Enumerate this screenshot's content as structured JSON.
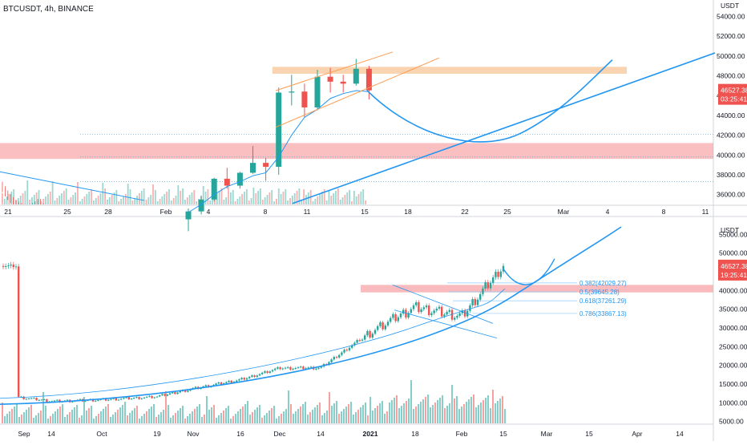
{
  "title": "BTCUSDT, 4h, BINANCE",
  "colors": {
    "up": "#26a69a",
    "down": "#ef5350",
    "trend": "#2196f3",
    "resistance_zone": "#f9c99c",
    "support_zone": "#f7a4a7",
    "channel": "#ff9a4d",
    "price_label": "#ef5350"
  },
  "chart_data": [
    {
      "type": "candlestick",
      "interval": "4h",
      "currency_label": "USDT",
      "price_axis": {
        "ticks": [
          "54000.00",
          "52000.00",
          "50000.00",
          "48000.00",
          "46000.00",
          "44000.00",
          "42000.00",
          "40000.00",
          "38000.00",
          "36000.00"
        ],
        "range": [
          35000,
          55000
        ]
      },
      "time_axis": {
        "ticks": [
          "21",
          "25",
          "28",
          "Feb",
          "4",
          "8",
          "11",
          "15",
          "18",
          "22",
          "25",
          "Mar",
          "4",
          "8",
          "11"
        ]
      },
      "last_price": "46527.38",
      "countdown": "03:25:41",
      "zones": [
        {
          "kind": "resistance",
          "from": 48200,
          "to": 48900
        },
        {
          "kind": "support",
          "from": 39600,
          "to": 41200
        }
      ],
      "horizontal_levels": [
        42100,
        39800,
        37300
      ],
      "projection": "parabolic curve from ~46500 dipping to ~41000 near Feb 23 then rising past 49500 by early Mar",
      "candles": [
        {
          "t": "Feb 1",
          "o": 33500,
          "h": 34600,
          "l": 32300,
          "c": 34300
        },
        {
          "t": "Feb 2",
          "o": 34300,
          "h": 35900,
          "l": 34000,
          "c": 35500
        },
        {
          "t": "Feb 3",
          "o": 35500,
          "h": 37700,
          "l": 35300,
          "c": 37600
        },
        {
          "t": "Feb 4",
          "o": 37600,
          "h": 38700,
          "l": 36600,
          "c": 36900
        },
        {
          "t": "Feb 5",
          "o": 36900,
          "h": 38300,
          "l": 36600,
          "c": 38200
        },
        {
          "t": "Feb 6",
          "o": 38200,
          "h": 40900,
          "l": 38100,
          "c": 39200
        },
        {
          "t": "Feb 7",
          "o": 39200,
          "h": 39700,
          "l": 37400,
          "c": 38800
        },
        {
          "t": "Feb 8",
          "o": 38800,
          "h": 46800,
          "l": 38000,
          "c": 46300
        },
        {
          "t": "Feb 9",
          "o": 46300,
          "h": 48100,
          "l": 45000,
          "c": 46400
        },
        {
          "t": "Feb 10",
          "o": 46400,
          "h": 47200,
          "l": 43800,
          "c": 44800
        },
        {
          "t": "Feb 11",
          "o": 44800,
          "h": 48600,
          "l": 44500,
          "c": 47900
        },
        {
          "t": "Feb 12",
          "o": 47900,
          "h": 48800,
          "l": 46300,
          "c": 47400
        },
        {
          "t": "Feb 13",
          "o": 47400,
          "h": 48100,
          "l": 46300,
          "c": 47200
        },
        {
          "t": "Feb 14",
          "o": 47200,
          "h": 49700,
          "l": 47000,
          "c": 48700
        },
        {
          "t": "Feb 15",
          "o": 48700,
          "h": 49000,
          "l": 45600,
          "c": 46527
        }
      ],
      "volume": [
        5,
        7,
        9,
        6,
        8,
        10,
        7,
        14,
        11,
        9,
        10,
        8,
        7,
        9,
        8
      ]
    },
    {
      "type": "candlestick",
      "interval": "4h",
      "currency_label": "USDT",
      "price_axis": {
        "ticks": [
          "55000.00",
          "50000.00",
          "45000.00",
          "40000.00",
          "35000.00",
          "30000.00",
          "25000.00",
          "20000.00",
          "15000.00",
          "10000.00",
          "5000.00"
        ],
        "range": [
          4500,
          57000
        ]
      },
      "time_axis": {
        "ticks": [
          "Sep",
          "14",
          "Oct",
          "19",
          "Nov",
          "16",
          "Dec",
          "14",
          "2021",
          "18",
          "Feb",
          "15",
          "Mar",
          "15",
          "Apr",
          "14"
        ]
      },
      "last_price": "46527.38",
      "countdown": "19:25:41",
      "fibonacci": [
        {
          "label": "0.382(42029.27)",
          "value": 42029.27
        },
        {
          "label": "0.5(39645.28)",
          "value": 39645.28
        },
        {
          "label": "0.618(37261.29)",
          "value": 37261.29
        },
        {
          "label": "0.786(33867.13)",
          "value": 33867.13
        }
      ],
      "zones": [
        {
          "kind": "support",
          "from": 39500,
          "to": 41500
        }
      ],
      "trendline": "rising parabolic support from ~10000 in Sep to ~57000 by late Mar",
      "series": [
        {
          "name": "close",
          "x": [
            "Sep",
            "14",
            "Oct",
            "19",
            "Nov",
            "16",
            "Dec",
            "14",
            "2021",
            "18",
            "Feb",
            "15"
          ],
          "values": [
            11500,
            10400,
            10800,
            11600,
            13800,
            16200,
            19200,
            19300,
            29000,
            35500,
            33000,
            46527
          ]
        }
      ]
    }
  ]
}
